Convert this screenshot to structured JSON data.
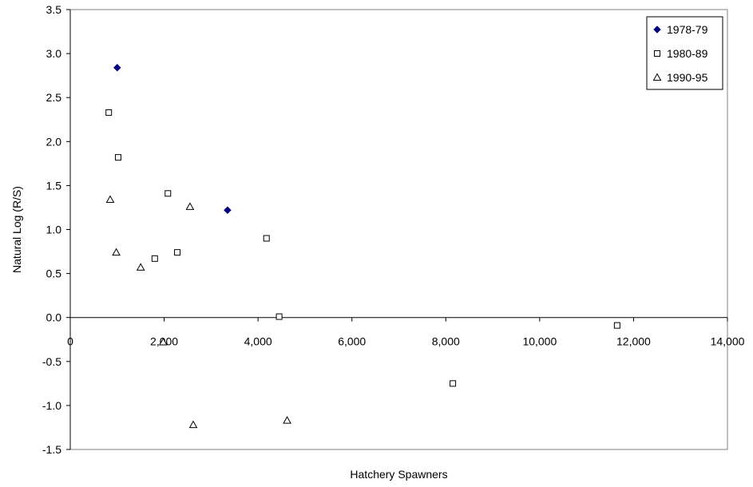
{
  "chart_data": {
    "type": "scatter",
    "title": "",
    "xlabel": "Hatchery Spawners",
    "ylabel": "Natural Log (R/S)",
    "xlim": [
      0,
      14000
    ],
    "ylim": [
      -1.5,
      3.5
    ],
    "x_ticks": [
      "0",
      "2,000",
      "4,000",
      "6,000",
      "8,000",
      "10,000",
      "12,000",
      "14,000"
    ],
    "y_ticks": [
      "3.5",
      "3.0",
      "2.5",
      "2.0",
      "1.5",
      "1.0",
      "0.5",
      "0.0",
      "-0.5",
      "-1.0",
      "-1.5"
    ],
    "grid": false,
    "legend_position": "top-right",
    "series": [
      {
        "name": "1978-79",
        "marker": "filled-diamond",
        "color": "#000080",
        "points": [
          [
            1000,
            2.84
          ],
          [
            3350,
            1.22
          ]
        ]
      },
      {
        "name": "1980-89",
        "marker": "open-square",
        "color": "#000000",
        "points": [
          [
            820,
            2.33
          ],
          [
            1020,
            1.82
          ],
          [
            2080,
            1.41
          ],
          [
            1800,
            0.67
          ],
          [
            2280,
            0.74
          ],
          [
            4180,
            0.9
          ],
          [
            4450,
            0.01
          ],
          [
            8150,
            -0.75
          ],
          [
            11650,
            -0.09
          ]
        ]
      },
      {
        "name": "1990-95",
        "marker": "open-triangle",
        "color": "#000000",
        "points": [
          [
            850,
            1.34
          ],
          [
            980,
            0.74
          ],
          [
            1500,
            0.57
          ],
          [
            1980,
            -0.28
          ],
          [
            2550,
            1.26
          ],
          [
            2620,
            -1.22
          ],
          [
            4620,
            -1.17
          ]
        ]
      }
    ]
  }
}
